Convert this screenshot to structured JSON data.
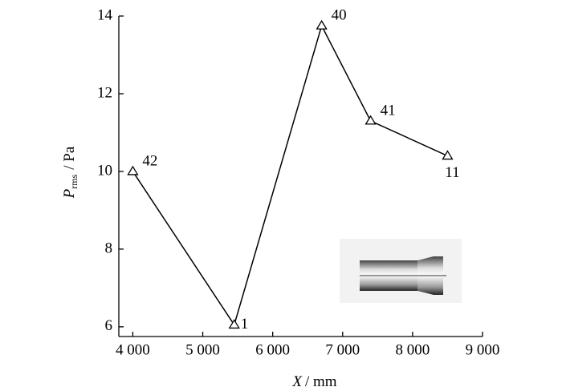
{
  "chart_data": {
    "type": "line",
    "xlabel_symbol": "X",
    "xlabel_unit": "/ mm",
    "ylabel_symbol": "P",
    "ylabel_sub": "rms",
    "ylabel_unit": "/ Pa",
    "x": [
      4000,
      5450,
      6700,
      7400,
      8500
    ],
    "series": [
      {
        "color": "#000000",
        "values": [
          10,
          6.05,
          13.75,
          11.3,
          10.4
        ],
        "point_labels": [
          "42",
          "1",
          "40",
          "41",
          "11"
        ]
      }
    ],
    "xlim": [
      3800,
      9000
    ],
    "ylim": [
      5.75,
      14
    ],
    "xticks": [
      {
        "value": 4000,
        "label": "4 000"
      },
      {
        "value": 5000,
        "label": "5 000"
      },
      {
        "value": 6000,
        "label": "6 000"
      },
      {
        "value": 7000,
        "label": "7 000"
      },
      {
        "value": 8000,
        "label": "8 000"
      },
      {
        "value": 9000,
        "label": "9 000"
      }
    ],
    "yticks": [
      6,
      8,
      10,
      12,
      14
    ]
  }
}
